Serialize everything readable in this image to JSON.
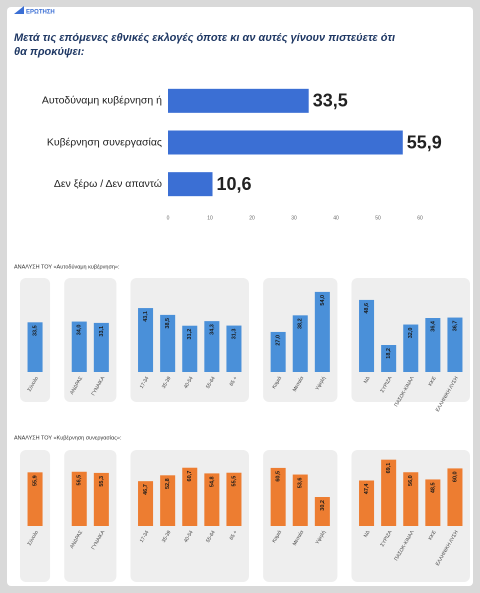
{
  "logo": "ΕΡΩΤΗΣΗ",
  "chart_data": [
    {
      "type": "hbar",
      "title": "Μετά τις επόμενες εθνικές εκλογές όποτε κι αν αυτές γίνουν πιστεύετε ότι θα προκύψει:",
      "categories": [
        "Αυτοδύναμη κυβέρνηση ή",
        "Κυβέρνηση συνεργασίας",
        "Δεν ξέρω / Δεν απαντώ"
      ],
      "values": [
        33.5,
        55.9,
        10.6
      ],
      "value_labels": [
        "33,5",
        "55,9",
        "10,6"
      ],
      "color": "#3b6fd4",
      "xlim": [
        0,
        60
      ],
      "xticks": [
        0,
        10,
        20,
        30,
        40,
        50,
        60
      ]
    },
    {
      "type": "bar",
      "title": "ΑΝΑΛΥΣΗ ΤΟΥ «Αυτοδύναμη κυβέρνηση»:",
      "categories": [
        "Σύνολο",
        null,
        "ΑΝΔΡΑΣ",
        "ΓΥΝΑΙΚΑ",
        null,
        "17-34",
        "35-39",
        "40-54",
        "55-64",
        "65 +",
        null,
        "Καμιά",
        "Μεσαία",
        "Υψηλή",
        null,
        "ΝΔ",
        "ΣΥΡΙΖΑ",
        "ΠΑΣΟΚ-ΚΙΝΑΛ",
        "ΚΚΕ",
        "ΕΛΛΗΝΙΚΗ ΛΥΣΗ"
      ],
      "values": [
        33.5,
        null,
        34.0,
        33.1,
        null,
        43.1,
        38.5,
        31.2,
        34.3,
        31.3,
        null,
        27.0,
        38.2,
        54.0,
        null,
        48.6,
        18.2,
        32.0,
        36.4,
        36.7
      ],
      "value_labels": [
        "33,5",
        null,
        "34,0",
        "33,1",
        null,
        "43,1",
        "38,5",
        "31,2",
        "34,3",
        "31,3",
        null,
        "27,0",
        "38,2",
        "54,0",
        null,
        "48,6",
        "18,2",
        "32,0",
        "36,4",
        "36,7"
      ],
      "color": "#4a90d9",
      "ylim": [
        0,
        60
      ]
    },
    {
      "type": "bar",
      "title": "ΑΝΑΛΥΣΗ ΤΟΥ «Κυβέρνηση συνεργασίας»:",
      "categories": [
        "Σύνολο",
        null,
        "ΑΝΔΡΑΣ",
        "ΓΥΝΑΙΚΑ",
        null,
        "17-34",
        "35-39",
        "40-54",
        "55-64",
        "65 +",
        null,
        "Καμιά",
        "Μεσαία",
        "Υψηλή",
        null,
        "ΝΔ",
        "ΣΥΡΙΖΑ",
        "ΠΑΣΟΚ-ΚΙΝΑΛ",
        "ΚΚΕ",
        "ΕΛΛΗΝΙΚΗ ΛΥΣΗ"
      ],
      "values": [
        55.9,
        null,
        56.5,
        55.3,
        null,
        46.7,
        52.8,
        60.7,
        54.8,
        55.5,
        null,
        60.5,
        53.6,
        30.2,
        null,
        47.4,
        69.1,
        56.0,
        48.5,
        60.0
      ],
      "value_labels": [
        "55,9",
        null,
        "56,5",
        "55,3",
        null,
        "46,7",
        "52,8",
        "60,7",
        "54,8",
        "55,5",
        null,
        "60,5",
        "53,6",
        "30,2",
        null,
        "47,4",
        "69,1",
        "56,0",
        "48,5",
        "60,0"
      ],
      "color": "#ed7d31",
      "ylim": [
        0,
        75
      ]
    }
  ]
}
